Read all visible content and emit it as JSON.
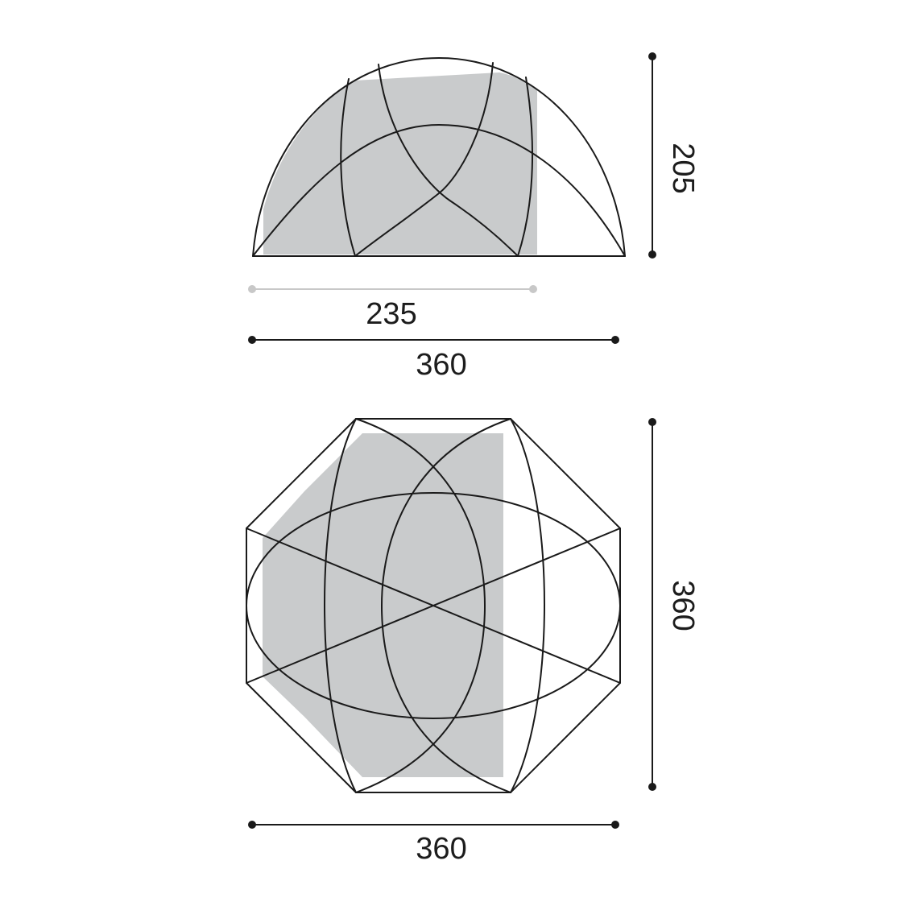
{
  "colors": {
    "line": "#1a1a1a",
    "inner_fill": "#c9cbcc",
    "inner_dim": "#c8c8c8",
    "background": "#ffffff"
  },
  "side_view": {
    "height_label": "205",
    "inner_width_label": "235",
    "outer_width_label": "360"
  },
  "top_view": {
    "depth_label": "360",
    "width_label": "360"
  }
}
